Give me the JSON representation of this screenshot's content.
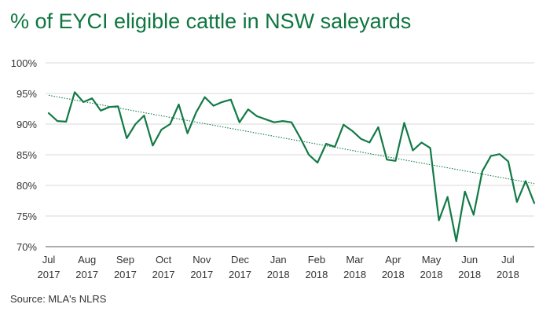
{
  "title": "% of EYCI eligible cattle in NSW saleyards",
  "source": "Source: MLA's NLRS",
  "colors": {
    "title": "#0f7640",
    "line": "#127a46",
    "trend": "#127a46",
    "grid": "#d9d9d9",
    "axis": "#595959",
    "text": "#333333"
  },
  "chart_data": {
    "type": "line",
    "title": "% of EYCI eligible cattle in NSW saleyards",
    "xlabel": "",
    "ylabel": "",
    "ylim": [
      70,
      100
    ],
    "grid": "horizontal",
    "legend": "none",
    "y_ticks": [
      "100%",
      "95%",
      "90%",
      "85%",
      "80%",
      "75%",
      "70%"
    ],
    "x_tick_labels": [
      {
        "month": "Jul",
        "year": "2017"
      },
      {
        "month": "Aug",
        "year": "2017"
      },
      {
        "month": "Sep",
        "year": "2017"
      },
      {
        "month": "Oct",
        "year": "2017"
      },
      {
        "month": "Nov",
        "year": "2017"
      },
      {
        "month": "Dec",
        "year": "2017"
      },
      {
        "month": "Jan",
        "year": "2018"
      },
      {
        "month": "Feb",
        "year": "2018"
      },
      {
        "month": "Mar",
        "year": "2018"
      },
      {
        "month": "Apr",
        "year": "2018"
      },
      {
        "month": "May",
        "year": "2018"
      },
      {
        "month": "Jun",
        "year": "2018"
      },
      {
        "month": "Jul",
        "year": "2018"
      }
    ],
    "series": [
      {
        "style": "solid",
        "values": [
          91.8,
          90.5,
          90.4,
          95.2,
          93.6,
          94.2,
          92.2,
          92.8,
          92.9,
          87.7,
          90.0,
          91.4,
          86.5,
          89.1,
          90.0,
          93.2,
          88.5,
          91.9,
          94.4,
          93.0,
          93.6,
          94.0,
          90.3,
          92.4,
          91.3,
          90.8,
          90.3,
          90.5,
          90.3,
          87.8,
          85.0,
          83.7,
          86.8,
          86.3,
          89.9,
          88.9,
          87.6,
          87.0,
          89.5,
          84.2,
          84.0,
          90.2,
          85.7,
          87.0,
          86.1,
          74.3,
          78.1,
          70.9,
          79.0,
          75.2,
          82.3,
          84.8,
          85.1,
          83.9,
          77.3,
          80.7,
          77.1
        ]
      },
      {
        "style": "dotted",
        "kind": "linear trend",
        "values": [
          94.7,
          80.3
        ]
      }
    ]
  }
}
